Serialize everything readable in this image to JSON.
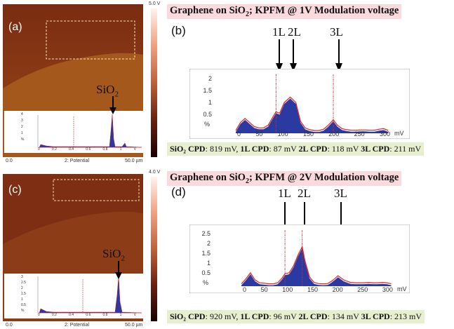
{
  "panels": [
    {
      "id": "top",
      "img_label": "(a)",
      "graph_label": "(b)",
      "colorbar_max": "5.0 V",
      "scale_left": "0.0",
      "scale_mid": "2: Potential",
      "scale_right": "50.0 µm",
      "si_label": "SiO",
      "si_sub": "2",
      "title_prefix": "Graphene on SiO",
      "title_sub": "2",
      "title_suffix": "; KPFM @ 1V Modulation voltage",
      "arrows": [
        "1L",
        "2L",
        "3L"
      ],
      "y_ticks": [
        "2",
        "1.5",
        "1",
        "0.5"
      ],
      "y_unit": "%",
      "x_ticks": [
        "0",
        "50",
        "100",
        "150",
        "200",
        "250",
        "300"
      ],
      "x_unit": "mV",
      "inset_y_ticks": [
        "4",
        "3",
        "2",
        "1"
      ],
      "inset_y_unit": "%",
      "inset_x_ticks": [
        "0",
        "0.2",
        "0.4",
        "0.6",
        "0.8",
        "1"
      ],
      "inset_x_unit": "V",
      "cpd": [
        {
          "label": "SiO₂ CPD",
          "value": ": 819 mV,"
        },
        {
          "label": "1L CPD",
          "value": ": 87 mV"
        },
        {
          "label": "2L CPD",
          "value": ": 118 mV"
        },
        {
          "label": "3L CPD",
          "value": ": 211 mV"
        }
      ]
    },
    {
      "id": "bottom",
      "img_label": "(c)",
      "graph_label": "(d)",
      "colorbar_max": "4.0 V",
      "scale_left": "0.0",
      "scale_mid": "2: Potential",
      "scale_right": "50.0 µm",
      "si_label": "SiO",
      "si_sub": "2",
      "title_prefix": "Graphene on SiO",
      "title_sub": "2",
      "title_suffix": "; KPFM @ 2V Modulation voltage",
      "arrows": [
        "1L",
        "2L",
        "3L"
      ],
      "y_ticks": [
        "2.5",
        "2",
        "1.5",
        "1",
        "0.5"
      ],
      "y_unit": "%",
      "x_ticks": [
        "0",
        "50",
        "100",
        "150",
        "200",
        "250",
        "300"
      ],
      "x_unit": "mV",
      "inset_y_ticks": [
        "3",
        "2.5",
        "2",
        "1.5",
        "1",
        "0.5"
      ],
      "inset_y_unit": "%",
      "inset_x_ticks": [
        "0",
        "0.2",
        "0.4",
        "0.6",
        "0.8",
        "1"
      ],
      "inset_x_unit": "V",
      "cpd": [
        {
          "label": "SiO₂ CPD",
          "value": ": 920 mV,"
        },
        {
          "label": "1L CPD",
          "value": ": 96 mV"
        },
        {
          "label": "2L CPD",
          "value": ": 134 mV"
        },
        {
          "label": "3L CPD",
          "value": ": 213 mV"
        }
      ]
    }
  ],
  "chart_data": [
    {
      "type": "area",
      "panel": "b",
      "x": [
        0,
        10,
        20,
        30,
        40,
        50,
        60,
        70,
        80,
        87,
        95,
        105,
        118,
        130,
        140,
        150,
        160,
        170,
        180,
        190,
        200,
        211,
        220,
        230,
        240,
        250,
        260,
        270,
        280,
        290,
        300,
        310,
        320,
        330
      ],
      "y": [
        0.05,
        0.35,
        0.5,
        0.35,
        0.2,
        0.15,
        0.15,
        0.25,
        0.55,
        0.75,
        0.7,
        1.1,
        1.3,
        1.1,
        0.4,
        0.15,
        0.08,
        0.05,
        0.05,
        0.1,
        0.25,
        0.45,
        0.25,
        0.12,
        0.08,
        0.06,
        0.06,
        0.07,
        0.07,
        0.06,
        0.06,
        0.1,
        0.12,
        0.05
      ],
      "xlim": [
        0,
        340
      ],
      "ylim": [
        0,
        2.2
      ]
    },
    {
      "type": "area",
      "panel": "d",
      "x": [
        0,
        10,
        20,
        30,
        40,
        50,
        60,
        70,
        80,
        90,
        96,
        105,
        115,
        125,
        134,
        140,
        150,
        160,
        170,
        180,
        190,
        200,
        213,
        225,
        240,
        250,
        260,
        270,
        280,
        290,
        300,
        310,
        320,
        330
      ],
      "y": [
        0.05,
        0.3,
        0.6,
        0.25,
        0.1,
        0.08,
        0.05,
        0.05,
        0.1,
        0.35,
        0.55,
        0.6,
        0.95,
        1.5,
        1.9,
        1.2,
        0.4,
        0.12,
        0.06,
        0.05,
        0.06,
        0.2,
        0.45,
        0.25,
        0.12,
        0.1,
        0.1,
        0.1,
        0.12,
        0.1,
        0.1,
        0.12,
        0.1,
        0.05
      ],
      "xlim": [
        0,
        340
      ],
      "ylim": [
        0,
        2.8
      ]
    }
  ]
}
